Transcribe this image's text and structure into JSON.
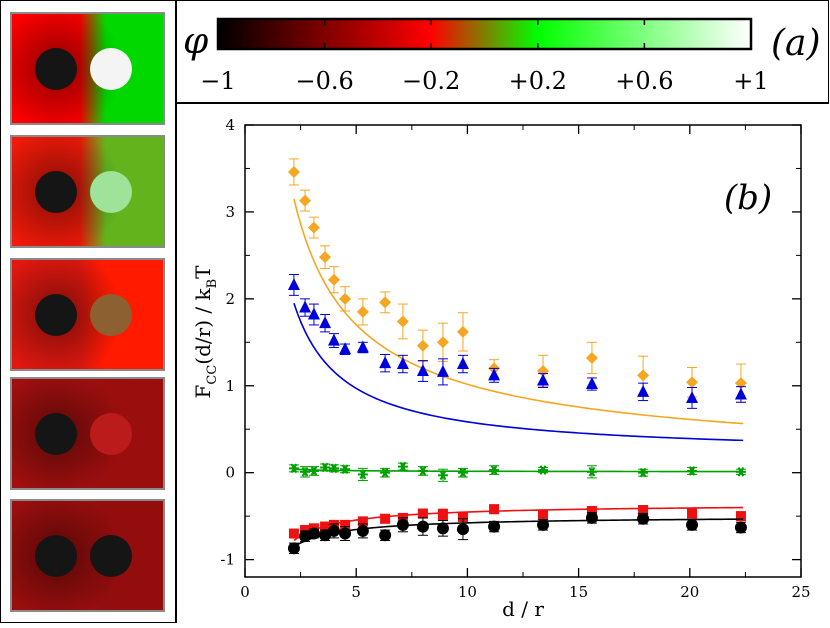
{
  "colorbar": {
    "symbol": "φ",
    "panel_label": "(a)",
    "ticks": [
      "−1",
      "−0.6",
      "−0.2",
      "+0.2",
      "+0.6",
      "+1"
    ],
    "gradient_colors": [
      "#000000",
      "#ff0000",
      "#00ff00",
      "#ffffff"
    ]
  },
  "panels": [
    {
      "name": "panel-1",
      "bg_left": "#ff0000",
      "bg_right": "#00d800",
      "disk_left": "#151515",
      "disk_right": "#f4f4f4"
    },
    {
      "name": "panel-2",
      "bg_left": "#f21a0a",
      "bg_right": "#63b41c",
      "disk_left": "#151515",
      "disk_right": "#9fe29a"
    },
    {
      "name": "panel-3",
      "bg_left": "#e41810",
      "bg_right": "#ff1a00",
      "disk_left": "#151515",
      "disk_right": "#8c6030"
    },
    {
      "name": "panel-4",
      "bg_left": "#a30f0f",
      "bg_right": "#9b0e0e",
      "disk_left": "#151515",
      "disk_right": "#bb1b1b"
    },
    {
      "name": "panel-5",
      "bg_left": "#9c0e0e",
      "bg_right": "#930d0d",
      "disk_left": "#151515",
      "disk_right": "#151515"
    }
  ],
  "chart_data": {
    "type": "scatter",
    "panel_label": "(b)",
    "xlabel": "d / r",
    "ylabel_main": "F",
    "ylabel_sub": "CC",
    "ylabel_mid": "(d/r) / k",
    "ylabel_sub2": "B",
    "ylabel_end": "T",
    "xlim": [
      0,
      25
    ],
    "ylim": [
      -1.2,
      4
    ],
    "xticks": [
      0,
      5,
      10,
      15,
      20,
      25
    ],
    "yticks": [
      -1,
      0,
      1,
      2,
      3,
      4
    ],
    "series": [
      {
        "name": "orange",
        "color": "#f5a623",
        "marker": "diamond",
        "x": [
          2.2,
          2.7,
          3.1,
          3.6,
          4.0,
          4.5,
          5.3,
          6.3,
          7.1,
          8.0,
          8.9,
          9.8,
          11.2,
          13.4,
          15.6,
          17.9,
          20.1,
          22.3
        ],
        "y": [
          3.46,
          3.13,
          2.82,
          2.48,
          2.22,
          2.0,
          1.85,
          1.96,
          1.74,
          1.46,
          1.5,
          1.62,
          1.2,
          1.17,
          1.32,
          1.12,
          1.04,
          1.03
        ],
        "err": [
          0.15,
          0.12,
          0.12,
          0.13,
          0.15,
          0.14,
          0.15,
          0.12,
          0.2,
          0.18,
          0.22,
          0.22,
          0.1,
          0.18,
          0.18,
          0.22,
          0.17,
          0.22
        ],
        "fit_a": 3.15,
        "fit_b": 0.03,
        "fit_c": 0.38
      },
      {
        "name": "blue",
        "color": "#0000dd",
        "marker": "triangle",
        "x": [
          2.2,
          2.7,
          3.1,
          3.6,
          4.0,
          4.5,
          5.3,
          6.3,
          7.1,
          8.0,
          8.9,
          9.8,
          11.2,
          13.4,
          15.6,
          17.9,
          20.1,
          22.3
        ],
        "y": [
          2.16,
          1.9,
          1.82,
          1.72,
          1.52,
          1.42,
          1.44,
          1.26,
          1.25,
          1.17,
          1.16,
          1.25,
          1.12,
          1.06,
          1.02,
          0.93,
          0.86,
          0.9
        ],
        "err": [
          0.12,
          0.1,
          0.12,
          0.1,
          0.08,
          0.06,
          0.06,
          0.1,
          0.1,
          0.12,
          0.15,
          0.1,
          0.08,
          0.08,
          0.07,
          0.1,
          0.12,
          0.09
        ],
        "fit_a": 1.95,
        "fit_b": 0.2,
        "fit_c": 0.5
      },
      {
        "name": "green",
        "color": "#00a000",
        "marker": "star",
        "x": [
          2.2,
          2.7,
          3.1,
          3.6,
          4.0,
          4.5,
          5.3,
          6.3,
          7.1,
          8.0,
          8.9,
          9.8,
          11.2,
          13.4,
          15.6,
          17.9,
          20.1,
          22.3
        ],
        "y": [
          0.05,
          0.01,
          0.02,
          0.06,
          0.05,
          0.04,
          -0.02,
          0.0,
          0.07,
          0.02,
          -0.03,
          0.0,
          0.03,
          0.03,
          0.01,
          0.0,
          0.02,
          0.01
        ],
        "err": [
          0.04,
          0.06,
          0.05,
          0.04,
          0.04,
          0.04,
          0.07,
          0.05,
          0.04,
          0.05,
          0.07,
          0.05,
          0.05,
          0.03,
          0.07,
          0.04,
          0.04,
          0.03
        ],
        "fit_a": 0.04,
        "fit_b": 0.01,
        "fit_c": 0.5
      },
      {
        "name": "red",
        "color": "#ee1111",
        "marker": "square",
        "x": [
          2.2,
          2.7,
          3.1,
          3.6,
          4.0,
          4.5,
          5.3,
          6.3,
          7.1,
          8.0,
          8.9,
          9.8,
          11.2,
          13.4,
          15.6,
          17.9,
          20.1,
          22.3
        ],
        "y": [
          -0.7,
          -0.66,
          -0.64,
          -0.62,
          -0.6,
          -0.6,
          -0.56,
          -0.53,
          -0.52,
          -0.47,
          -0.48,
          -0.51,
          -0.42,
          -0.48,
          -0.44,
          -0.43,
          -0.47,
          -0.5
        ],
        "err": [
          0.04,
          0.05,
          0.05,
          0.05,
          0.05,
          0.05,
          0.05,
          0.05,
          0.05,
          0.05,
          0.06,
          0.05,
          0.05,
          0.05,
          0.05,
          0.05,
          0.05,
          0.05
        ],
        "fit_a": -0.78,
        "fit_b": -0.36,
        "fit_c": 0.5
      },
      {
        "name": "black",
        "color": "#000000",
        "marker": "circle",
        "x": [
          2.2,
          2.7,
          3.1,
          3.6,
          4.0,
          4.5,
          5.3,
          6.3,
          7.1,
          8.0,
          8.9,
          9.8,
          11.2,
          13.4,
          15.6,
          17.9,
          20.1,
          22.3
        ],
        "y": [
          -0.87,
          -0.73,
          -0.7,
          -0.72,
          -0.67,
          -0.7,
          -0.67,
          -0.72,
          -0.6,
          -0.62,
          -0.64,
          -0.65,
          -0.62,
          -0.6,
          -0.52,
          -0.53,
          -0.6,
          -0.63
        ],
        "err": [
          0.06,
          0.06,
          0.05,
          0.06,
          0.08,
          0.08,
          0.08,
          0.06,
          0.08,
          0.1,
          0.09,
          0.12,
          0.06,
          0.06,
          0.06,
          0.06,
          0.06,
          0.06
        ],
        "fit_a": -0.85,
        "fit_b": -0.5,
        "fit_c": 0.5
      }
    ]
  }
}
